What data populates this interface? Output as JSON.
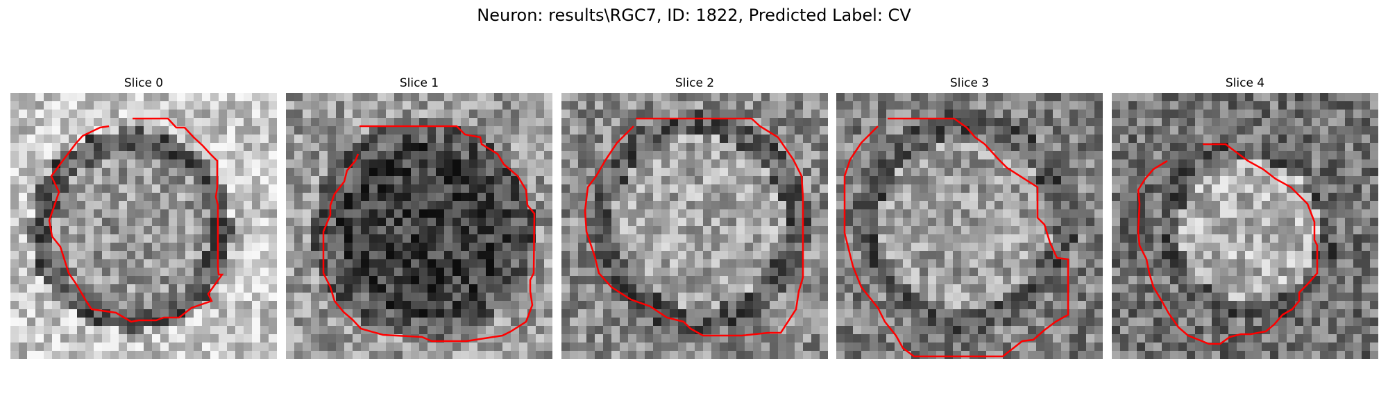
{
  "figure": {
    "title": "Neuron: results\\RGC7, ID: 1822, Predicted Label: CV"
  },
  "panels": [
    {
      "title": "Slice 0"
    },
    {
      "title": "Slice 1"
    },
    {
      "title": "Slice 2"
    },
    {
      "title": "Slice 3"
    },
    {
      "title": "Slice 4"
    }
  ],
  "style": {
    "contour_color": "#ff0000",
    "colormap": "gray"
  }
}
